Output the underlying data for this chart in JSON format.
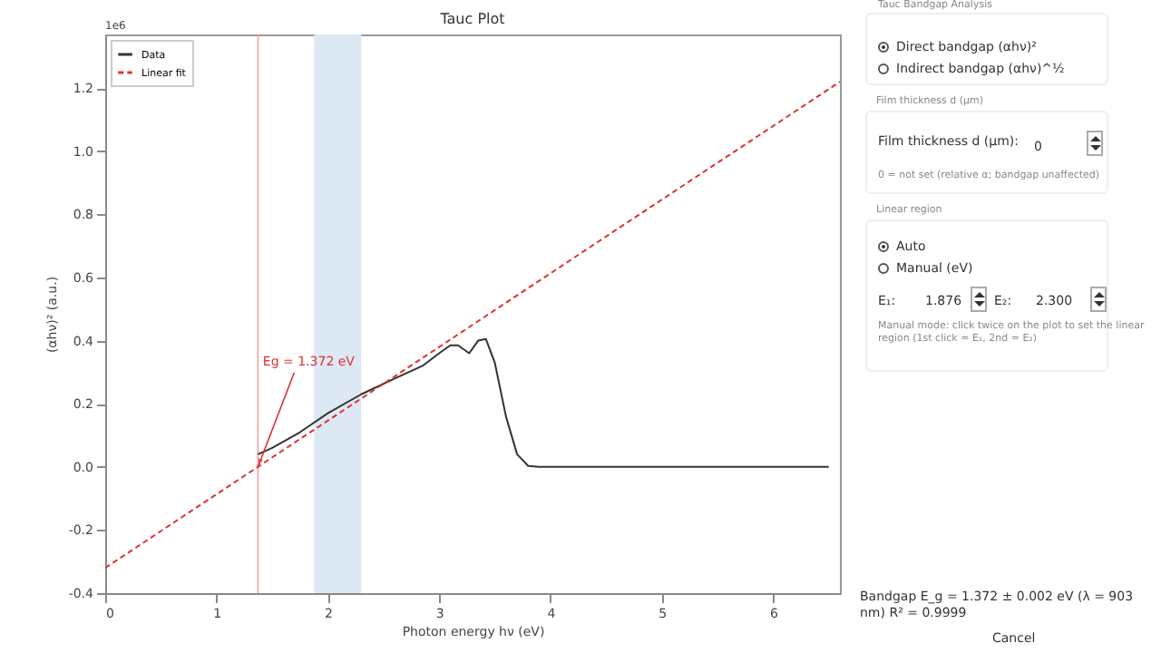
{
  "chart_data": {
    "type": "line",
    "title": "Tauc Plot",
    "xlabel": "Photon energy hν (eV)",
    "ylabel": "(αhν)² (a.u.)",
    "xlim": [
      0,
      6.6
    ],
    "xticks": [
      0,
      1,
      2,
      3,
      4,
      5,
      6
    ],
    "ylim": [
      -0.4,
      1.37
    ],
    "yticks": [
      -0.4,
      -0.2,
      {
        "value": 0,
        "label": "0.0"
      },
      0.2,
      0.4,
      0.6,
      0.8,
      {
        "value": 1,
        "label": "1.0"
      },
      1.2
    ],
    "grid": false,
    "legend": "top left",
    "series": [
      {
        "name": "Data",
        "color": "#333333",
        "line_style": "solid",
        "x": [
          1.372,
          1.5,
          1.75,
          2.0,
          2.3,
          2.6,
          2.85,
          3.0,
          3.1,
          3.17,
          3.27,
          3.35,
          3.42,
          3.5,
          3.6,
          3.7,
          3.8,
          3.9,
          6.5
        ],
        "values": [
          0.04,
          0.06,
          0.11,
          0.17,
          0.23,
          0.28,
          0.32,
          0.36,
          0.385,
          0.385,
          0.36,
          0.4,
          0.405,
          0.33,
          0.16,
          0.04,
          0.003,
          0,
          0
        ]
      },
      {
        "name": "Linear fit",
        "color": "#e03030",
        "line_style": "dashed",
        "x": [
          0,
          6.6
        ],
        "values": [
          -0.32,
          1.22
        ]
      }
    ],
    "ref_lines": [
      {
        "axis": "x",
        "value": 1.372,
        "color": "#f4a0a0"
      }
    ],
    "bands": [
      {
        "axis": "x",
        "from": 1.876,
        "to": 2.3,
        "color": "#dce8f4"
      }
    ],
    "annotations": [
      {
        "text": "Eg = 1.372 eV",
        "x": 1.372,
        "y": 0
      },
      "1e6",
      "Tauc Bandgap Analysis",
      "Direct bandgap (αhν)²",
      "Indirect bandgap (αhν)^½",
      "Film thickness d (µm)",
      "Film thickness d (µm):",
      "0",
      "0 = not set (relative α; bandgap unaffected)",
      "Linear region",
      "Auto",
      "Manual (eV)",
      "E₁:",
      "1.876",
      "E₂:",
      "2.300",
      "Manual mode: click twice on the plot to set the linear region (1st click = E₁, 2nd = E₂)",
      "Bandgap E_g = 1.372 ± 0.002 eV (λ = 903 nm)  R² = 0.9999",
      "Cancel"
    ]
  }
}
